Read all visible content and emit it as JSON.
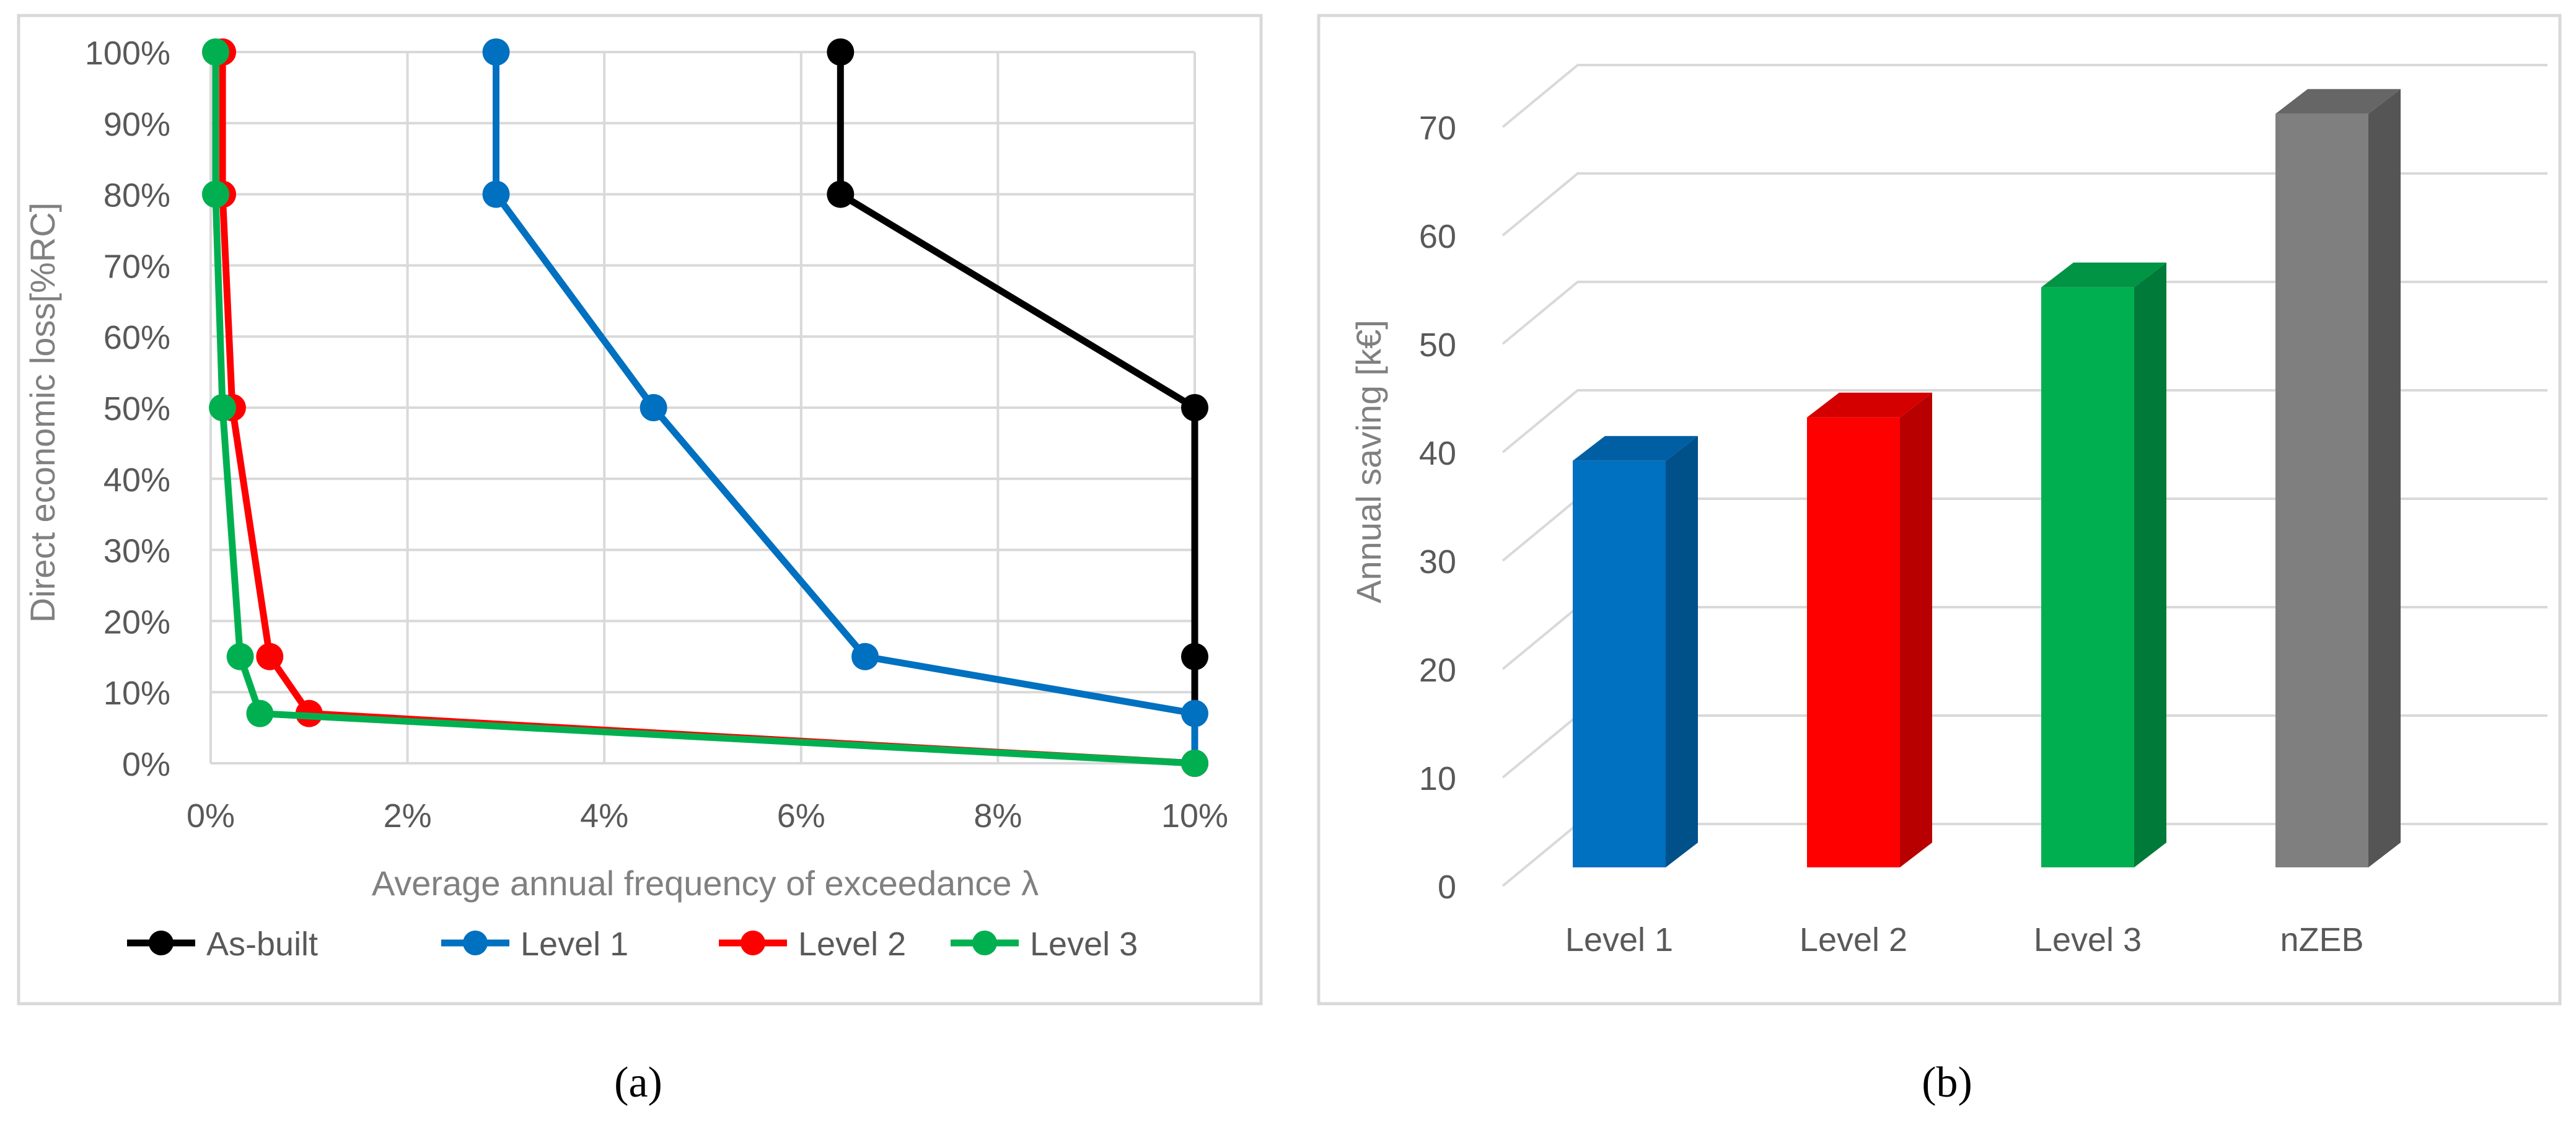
{
  "chart_data": [
    {
      "type": "line",
      "panel_label": "(a)",
      "xlabel": "Average annual frequency of exceedance λ",
      "ylabel": "Direct economic loss[%RC]",
      "xlim": [
        0,
        10
      ],
      "ylim": [
        0,
        100
      ],
      "x_ticks": [
        0,
        2,
        4,
        6,
        8,
        10
      ],
      "x_tick_labels": [
        "0%",
        "2%",
        "4%",
        "6%",
        "8%",
        "10%"
      ],
      "y_ticks": [
        0,
        10,
        20,
        30,
        40,
        50,
        60,
        70,
        80,
        90,
        100
      ],
      "y_tick_labels": [
        "0%",
        "10%",
        "20%",
        "30%",
        "40%",
        "50%",
        "60%",
        "70%",
        "80%",
        "90%",
        "100%"
      ],
      "grid": true,
      "legend_position": "bottom",
      "series": [
        {
          "name": "As-built",
          "color": "#000000",
          "points": [
            [
              6.4,
              100
            ],
            [
              6.4,
              80
            ],
            [
              10,
              50
            ],
            [
              10,
              15
            ],
            [
              10,
              0
            ]
          ]
        },
        {
          "name": "Level 1",
          "color": "#0070c0",
          "points": [
            [
              2.9,
              100
            ],
            [
              2.9,
              80
            ],
            [
              4.5,
              50
            ],
            [
              6.65,
              15
            ],
            [
              10,
              7
            ],
            [
              10,
              0
            ]
          ]
        },
        {
          "name": "Level 2",
          "color": "#ff0000",
          "points": [
            [
              0.12,
              100
            ],
            [
              0.12,
              80
            ],
            [
              0.22,
              50
            ],
            [
              0.6,
              15
            ],
            [
              1.0,
              7
            ],
            [
              10,
              0
            ]
          ]
        },
        {
          "name": "Level 3",
          "color": "#00b050",
          "points": [
            [
              0.05,
              100
            ],
            [
              0.05,
              80
            ],
            [
              0.12,
              50
            ],
            [
              0.3,
              15
            ],
            [
              0.5,
              7
            ],
            [
              10,
              0
            ]
          ]
        }
      ]
    },
    {
      "type": "bar",
      "panel_label": "(b)",
      "ylabel": "Annual saving [k€]",
      "ylim": [
        0,
        70
      ],
      "y_ticks": [
        0,
        10,
        20,
        30,
        40,
        50,
        60,
        70
      ],
      "y_tick_labels": [
        "0",
        "10",
        "20",
        "30",
        "40",
        "50",
        "60",
        "70"
      ],
      "grid": true,
      "categories": [
        "Level 1",
        "Level 2",
        "Level 3",
        "nZEB"
      ],
      "values": [
        37.5,
        41.5,
        53.5,
        69.5
      ],
      "colors": [
        "#0070c0",
        "#ff0000",
        "#00b050",
        "#7f7f7f"
      ],
      "side_colors": [
        "#00508a",
        "#b80000",
        "#007a38",
        "#555555"
      ],
      "top_colors": [
        "#005fa3",
        "#d40000",
        "#009444",
        "#666666"
      ]
    }
  ]
}
